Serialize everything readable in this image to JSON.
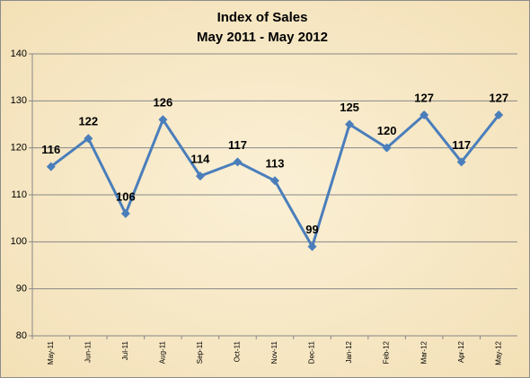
{
  "chart_data": {
    "type": "line",
    "title": "Index of Sales",
    "subtitle": "May 2011 - May 2012",
    "categories": [
      "May-11",
      "Jun-11",
      "Jul-11",
      "Aug-11",
      "Sep-11",
      "Oct-11",
      "Nov-11",
      "Dec-11",
      "Jan-12",
      "Feb-12",
      "Mar-12",
      "Apr-12",
      "May-12"
    ],
    "values": [
      116,
      122,
      106,
      126,
      114,
      117,
      113,
      99,
      125,
      120,
      127,
      117,
      127
    ],
    "color": "#4a7ebb",
    "ylim": [
      80,
      140
    ],
    "yticks": [
      80,
      90,
      100,
      110,
      120,
      130,
      140
    ],
    "grid": true
  }
}
